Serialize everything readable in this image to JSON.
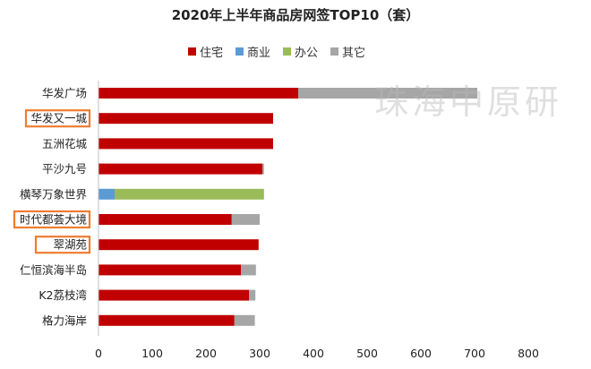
{
  "chart_data": {
    "type": "bar",
    "orientation": "horizontal",
    "stacked": true,
    "title": "2020年上半年商品房网签TOP10（套）",
    "categories": [
      "华发广场",
      "华发又一城",
      "五洲花城",
      "平沙九号",
      "横琴万象世界",
      "时代都荟大境",
      "翠湖苑",
      "仁恒滨海半岛",
      "K2荔枝湾",
      "格力海岸"
    ],
    "highlighted_categories": [
      "华发又一城",
      "时代都荟大境",
      "翠湖苑"
    ],
    "series": [
      {
        "name": "住宅",
        "color": "#c00000",
        "values": [
          372,
          325,
          325,
          305,
          0,
          248,
          298,
          265,
          280,
          253
        ]
      },
      {
        "name": "商业",
        "color": "#5b9bd5",
        "values": [
          0,
          0,
          0,
          0,
          30,
          0,
          0,
          0,
          0,
          0
        ]
      },
      {
        "name": "办公",
        "color": "#9bbb59",
        "values": [
          0,
          0,
          0,
          0,
          278,
          0,
          0,
          0,
          0,
          0
        ]
      },
      {
        "name": "其它",
        "color": "#a6a6a6",
        "values": [
          333,
          0,
          0,
          3,
          0,
          52,
          0,
          28,
          12,
          38
        ]
      }
    ],
    "xlim": [
      0,
      800
    ],
    "xticks": [
      0,
      100,
      200,
      300,
      400,
      500,
      600,
      700,
      800
    ],
    "legend_position": "top",
    "grid": false,
    "highlight_color": "#ed7d31",
    "watermark": "珠海中原研"
  }
}
